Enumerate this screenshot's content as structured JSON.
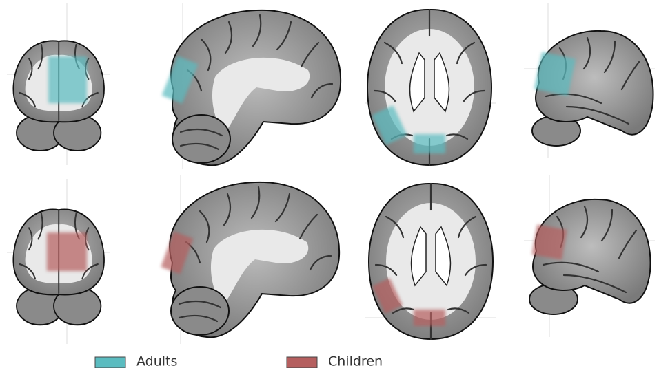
{
  "legend": {
    "items": [
      {
        "label": "Adults",
        "color": "#5bbcc0"
      },
      {
        "label": "Children",
        "color": "#b55f5f"
      }
    ]
  }
}
